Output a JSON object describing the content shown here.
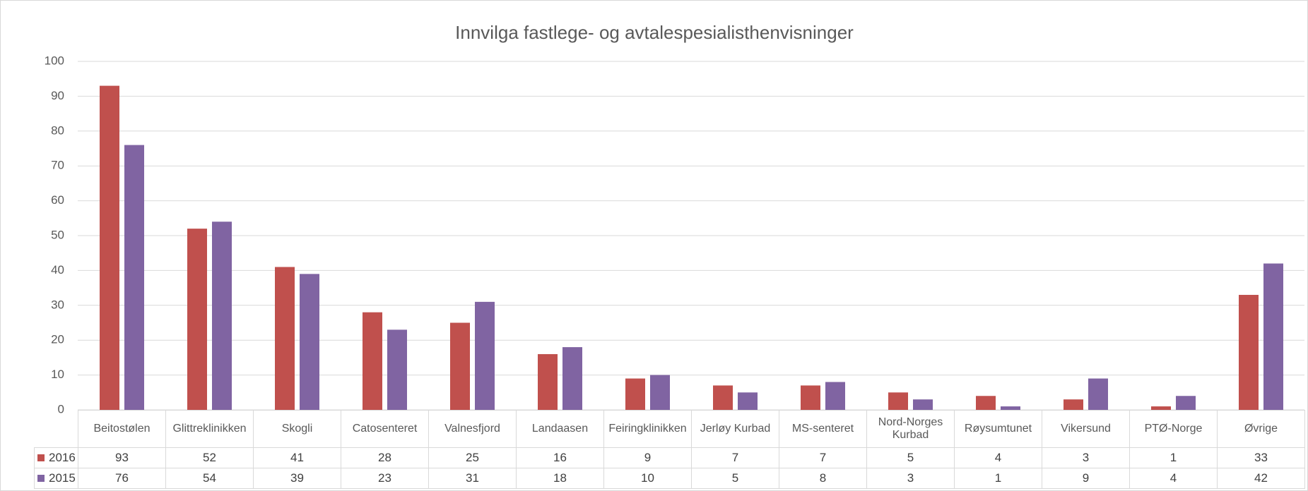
{
  "chart_data": {
    "type": "bar",
    "title": "Innvilga fastlege- og avtalespesialisthenvisninger",
    "categories": [
      "Beitostølen",
      "Glittreklinikken",
      "Skogli",
      "Catosenteret",
      "Valnesfjord",
      "Landaasen",
      "Feiringklinikken",
      "Jerløy Kurbad",
      "MS-senteret",
      "Nord-Norges Kurbad",
      "Røysumtunet",
      "Vikersund",
      "PTØ-Norge",
      "Øvrige"
    ],
    "series": [
      {
        "name": "2016",
        "color": "#c0504d",
        "values": [
          93,
          52,
          41,
          28,
          25,
          16,
          9,
          7,
          7,
          5,
          4,
          3,
          1,
          33
        ]
      },
      {
        "name": "2015",
        "color": "#8064a2",
        "values": [
          76,
          54,
          39,
          23,
          31,
          18,
          10,
          5,
          8,
          3,
          1,
          9,
          4,
          42
        ]
      }
    ],
    "ylim": [
      0,
      100
    ],
    "yticks": [
      0,
      10,
      20,
      30,
      40,
      50,
      60,
      70,
      80,
      90,
      100
    ],
    "grid": true
  }
}
